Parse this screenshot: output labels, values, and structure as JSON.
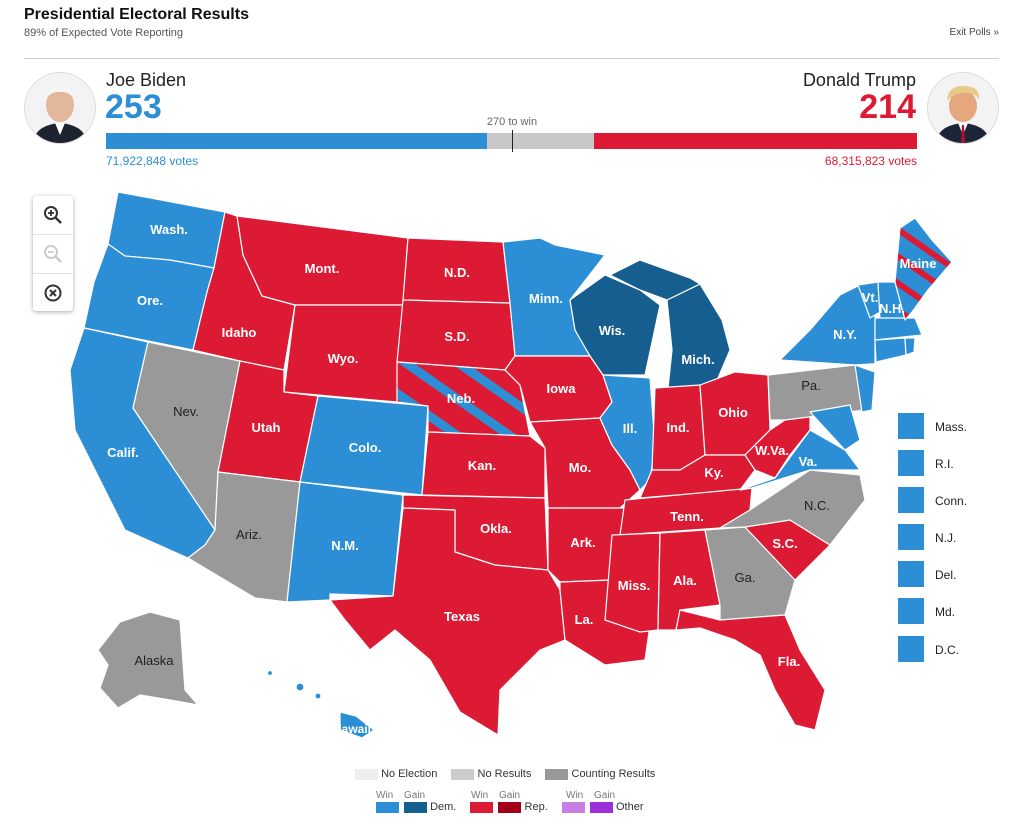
{
  "header": {
    "title": "Presidential Electoral Results",
    "subtitle": "89% of Expected Vote Reporting",
    "exit_polls": "Exit Polls »"
  },
  "candidates": {
    "dem": {
      "name": "Joe Biden",
      "electoral_votes": "253",
      "votes": "71,922,848 votes",
      "color": "#2c8fd6"
    },
    "rep": {
      "name": "Donald Trump",
      "electoral_votes": "214",
      "votes": "68,315,823 votes",
      "color": "#dc1a33"
    }
  },
  "progress": {
    "to_win_label": "270 to win",
    "total_electoral": 538,
    "dem_ev": 253,
    "rep_ev": 214
  },
  "zoom_controls": [
    "zoom-in-icon",
    "zoom-out-icon",
    "reset-zoom-icon"
  ],
  "states": {
    "wa": "Wash.",
    "or": "Ore.",
    "ca": "Calif.",
    "nv": "Nev.",
    "id": "Idaho",
    "mt": "Mont.",
    "wy": "Wyo.",
    "ut": "Utah",
    "az": "Ariz.",
    "co": "Colo.",
    "nm": "N.M.",
    "nd": "N.D.",
    "sd": "S.D.",
    "ne": "Neb.",
    "ks": "Kan.",
    "ok": "Okla.",
    "tx": "Texas",
    "mn": "Minn.",
    "ia": "Iowa",
    "mo": "Mo.",
    "ar": "Ark.",
    "la": "La.",
    "wi": "Wis.",
    "il": "Ill.",
    "mi": "Mich.",
    "in": "Ind.",
    "oh": "Ohio",
    "ky": "Ky.",
    "tn": "Tenn.",
    "ms": "Miss.",
    "al": "Ala.",
    "ga": "Ga.",
    "fl": "Fla.",
    "sc": "S.C.",
    "nc": "N.C.",
    "va": "Va.",
    "wv": "W.Va.",
    "pa": "Pa.",
    "ny": "N.Y.",
    "vt": "Vt.",
    "nh": "N.H.",
    "me": "Maine",
    "ak": "Alaska",
    "hi": "Hawaii"
  },
  "small_states": [
    "Mass.",
    "R.I.",
    "Conn.",
    "N.J.",
    "Del.",
    "Md.",
    "D.C."
  ],
  "legend": {
    "no_election": "No Election",
    "no_results": "No Results",
    "counting": "Counting Results",
    "win": "Win",
    "gain": "Gain",
    "dem": "Dem.",
    "rep": "Rep.",
    "other": "Other",
    "colors": {
      "no_election": "#eeeeee",
      "no_results": "#cccccc",
      "counting": "#999999",
      "dem_win": "#2c8fd6",
      "dem_gain": "#155e8f",
      "rep_win": "#dc1a33",
      "rep_gain": "#a10019",
      "other_win": "#c77fe3",
      "other_gain": "#9b30d9"
    }
  }
}
